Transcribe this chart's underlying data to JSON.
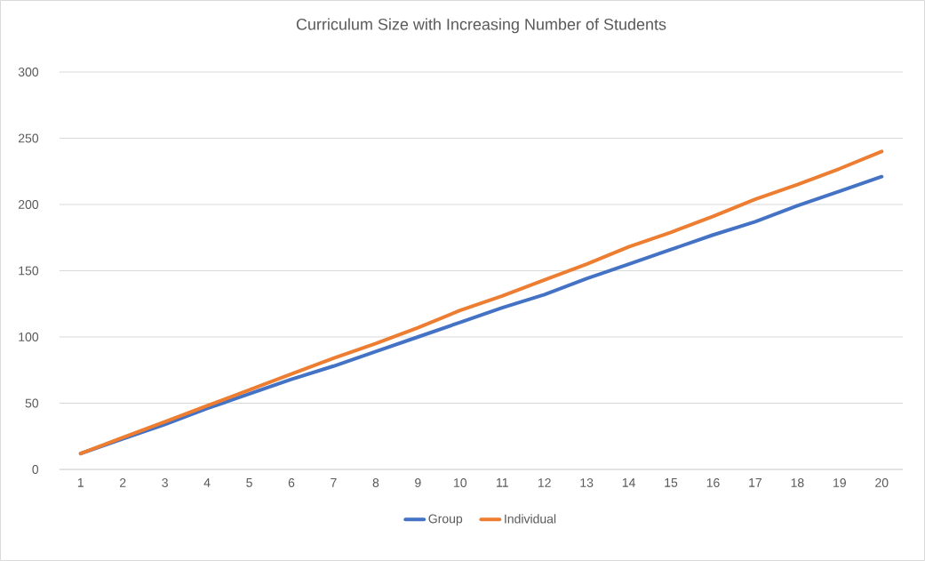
{
  "chart_data": {
    "type": "line",
    "title": "Curriculum Size with Increasing Number of Students",
    "categories": [
      "1",
      "2",
      "3",
      "4",
      "5",
      "6",
      "7",
      "8",
      "9",
      "10",
      "11",
      "12",
      "13",
      "14",
      "15",
      "16",
      "17",
      "18",
      "19",
      "20"
    ],
    "series": [
      {
        "name": "Group",
        "color": "#4472c4",
        "values": [
          12,
          23,
          34,
          46,
          57,
          68,
          78,
          89,
          100,
          111,
          122,
          132,
          144,
          155,
          166,
          177,
          187,
          199,
          210,
          221
        ]
      },
      {
        "name": "Individual",
        "color": "#ed7d31",
        "values": [
          12,
          24,
          36,
          48,
          60,
          72,
          84,
          95,
          107,
          120,
          131,
          143,
          155,
          168,
          179,
          191,
          204,
          215,
          227,
          240
        ]
      }
    ],
    "ylim": [
      0,
      300
    ],
    "yticks": [
      0,
      50,
      100,
      150,
      200,
      250,
      300
    ],
    "grid": "y",
    "legend": "bottom",
    "marker": "none",
    "line_style": "solid"
  }
}
